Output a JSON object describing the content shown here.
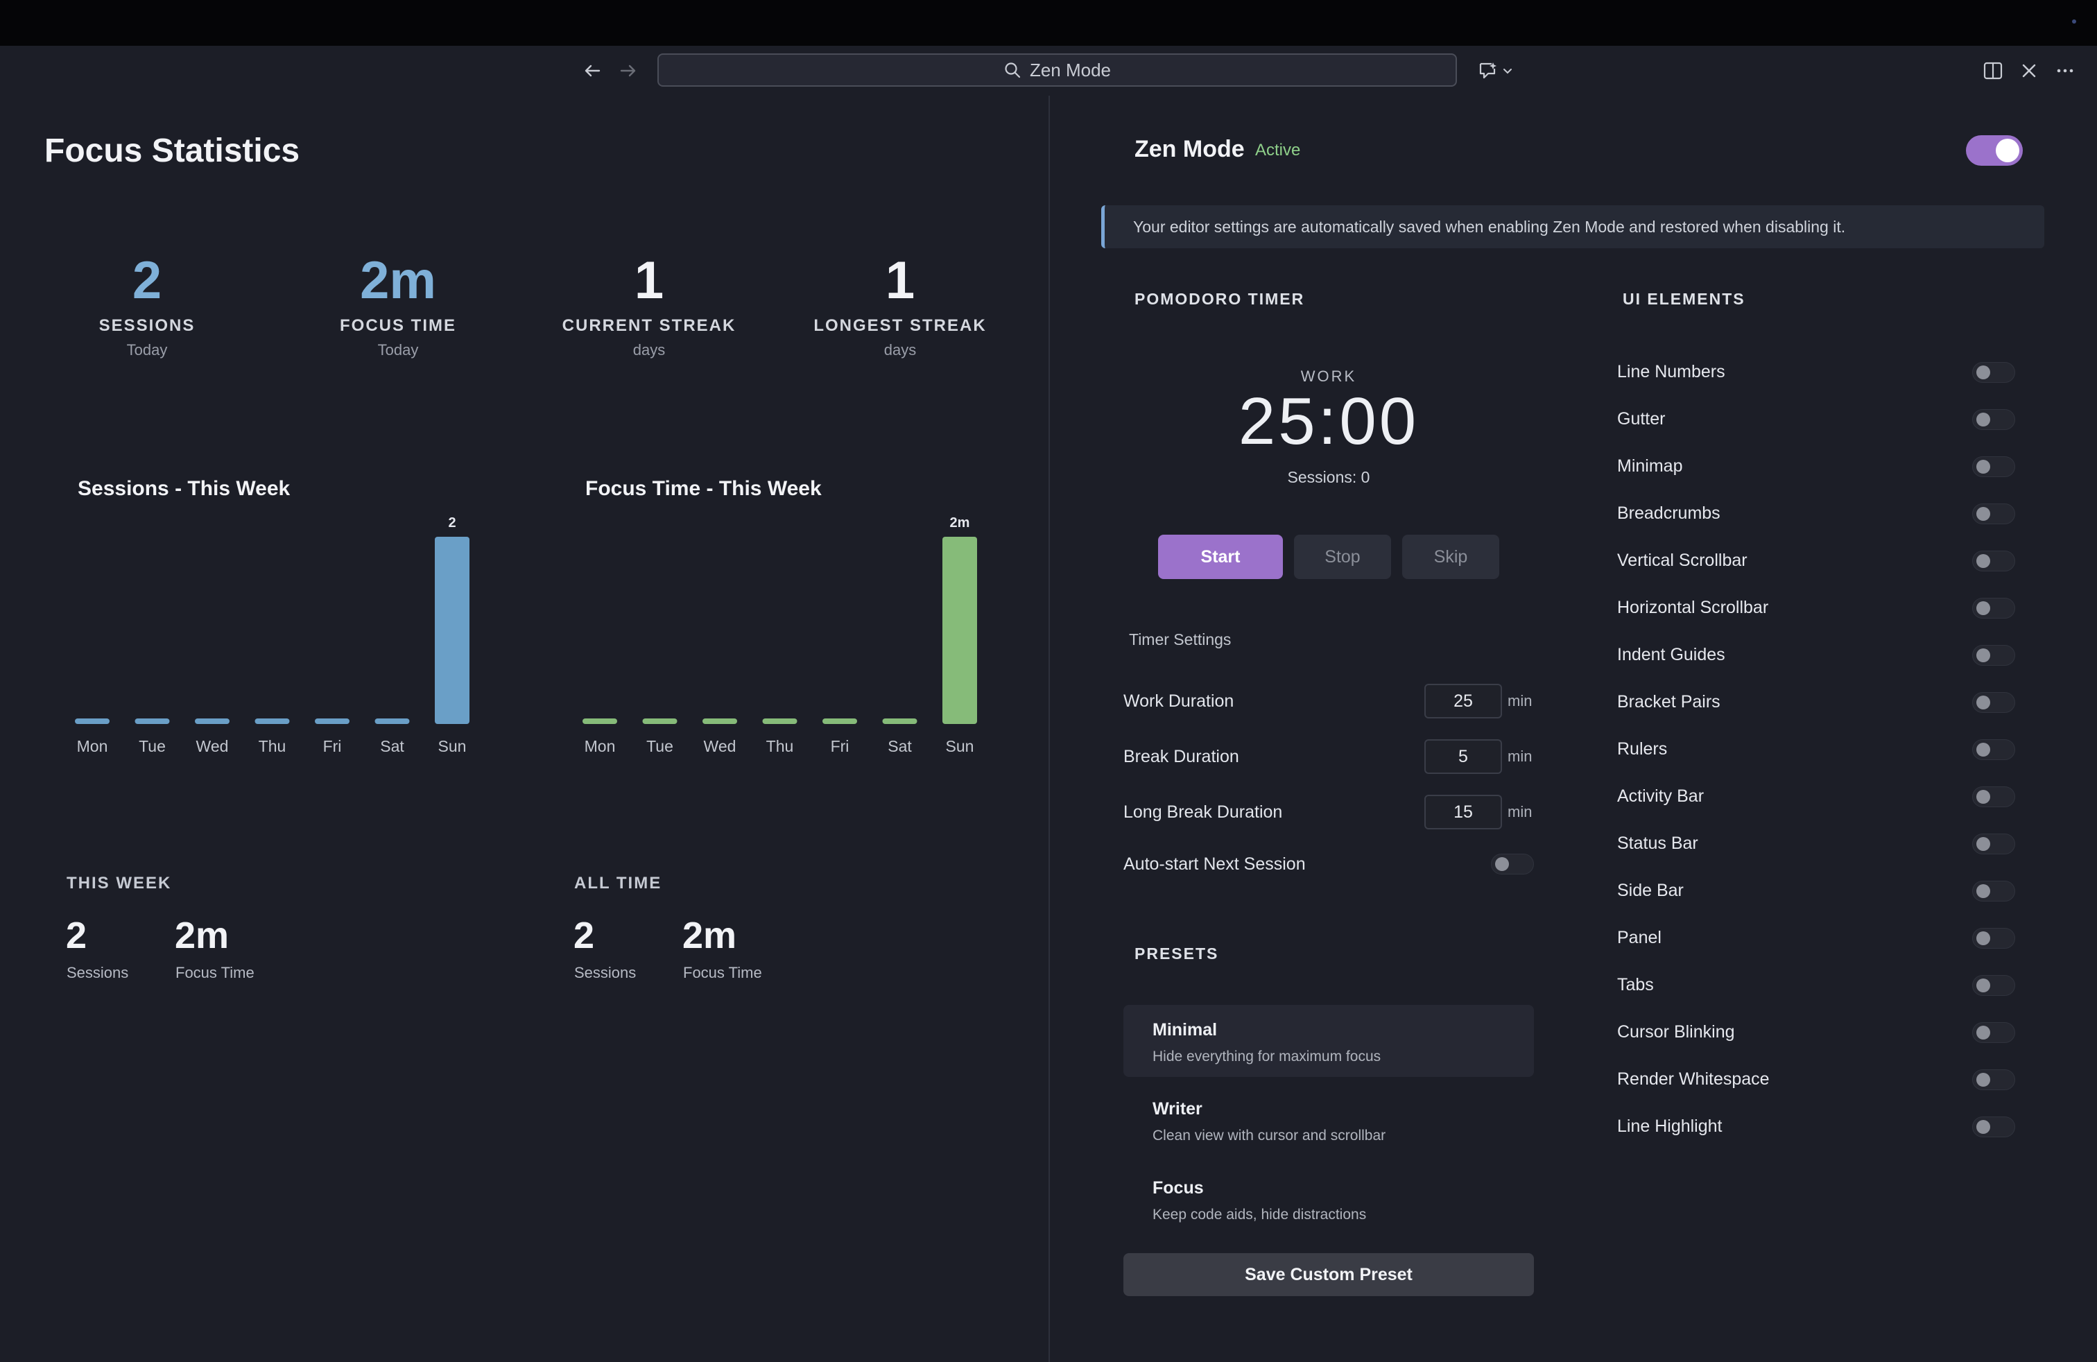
{
  "topbar": {
    "search_text": "Zen Mode"
  },
  "stats": {
    "page_title": "Focus Statistics",
    "cards": [
      {
        "value": "2",
        "label": "SESSIONS",
        "sub": "Today",
        "color": "#7fb0d8"
      },
      {
        "value": "2m",
        "label": "FOCUS TIME",
        "sub": "Today",
        "color": "#7fb0d8"
      },
      {
        "value": "1",
        "label": "CURRENT STREAK",
        "sub": "days",
        "color": "#f2f3f6"
      },
      {
        "value": "1",
        "label": "LONGEST STREAK",
        "sub": "days",
        "color": "#f2f3f6"
      }
    ]
  },
  "chart_data": [
    {
      "type": "bar",
      "title": "Sessions - This Week",
      "categories": [
        "Mon",
        "Tue",
        "Wed",
        "Thu",
        "Fri",
        "Sat",
        "Sun"
      ],
      "values": [
        0,
        0,
        0,
        0,
        0,
        0,
        2
      ],
      "labels": [
        "",
        "",
        "",
        "",
        "",
        "",
        "2"
      ],
      "max": 2,
      "color": "#6a9fc7"
    },
    {
      "type": "bar",
      "title": "Focus Time - This Week",
      "categories": [
        "Mon",
        "Tue",
        "Wed",
        "Thu",
        "Fri",
        "Sat",
        "Sun"
      ],
      "values": [
        0,
        0,
        0,
        0,
        0,
        0,
        2
      ],
      "labels": [
        "",
        "",
        "",
        "",
        "",
        "",
        "2m"
      ],
      "max": 2,
      "color": "#86bb79"
    }
  ],
  "summary": {
    "this_week": {
      "heading": "THIS WEEK",
      "sessions": "2",
      "sessions_label": "Sessions",
      "focus": "2m",
      "focus_label": "Focus Time"
    },
    "all_time": {
      "heading": "ALL TIME",
      "sessions": "2",
      "sessions_label": "Sessions",
      "focus": "2m",
      "focus_label": "Focus Time"
    }
  },
  "zen": {
    "title": "Zen Mode",
    "status": "Active",
    "banner": "Your editor settings are automatically saved when enabling Zen Mode and restored when disabling it."
  },
  "pomodoro": {
    "heading": "POMODORO TIMER",
    "mode": "WORK",
    "time": "25:00",
    "sessions": "Sessions: 0",
    "start": "Start",
    "stop": "Stop",
    "skip": "Skip",
    "settings_label": "Timer Settings",
    "settings": [
      {
        "label": "Work Duration",
        "value": "25",
        "unit": "min"
      },
      {
        "label": "Break Duration",
        "value": "5",
        "unit": "min"
      },
      {
        "label": "Long Break Duration",
        "value": "15",
        "unit": "min"
      }
    ],
    "autostart_label": "Auto-start Next Session"
  },
  "presets": {
    "heading": "PRESETS",
    "items": [
      {
        "name": "Minimal",
        "desc": "Hide everything for maximum focus"
      },
      {
        "name": "Writer",
        "desc": "Clean view with cursor and scrollbar"
      },
      {
        "name": "Focus",
        "desc": "Keep code aids, hide distractions"
      }
    ],
    "save_label": "Save Custom Preset"
  },
  "ui_elements": {
    "heading": "UI ELEMENTS",
    "items": [
      "Line Numbers",
      "Gutter",
      "Minimap",
      "Breadcrumbs",
      "Vertical Scrollbar",
      "Horizontal Scrollbar",
      "Indent Guides",
      "Bracket Pairs",
      "Rulers",
      "Activity Bar",
      "Status Bar",
      "Side Bar",
      "Panel",
      "Tabs",
      "Cursor Blinking",
      "Render Whitespace",
      "Line Highlight"
    ]
  }
}
